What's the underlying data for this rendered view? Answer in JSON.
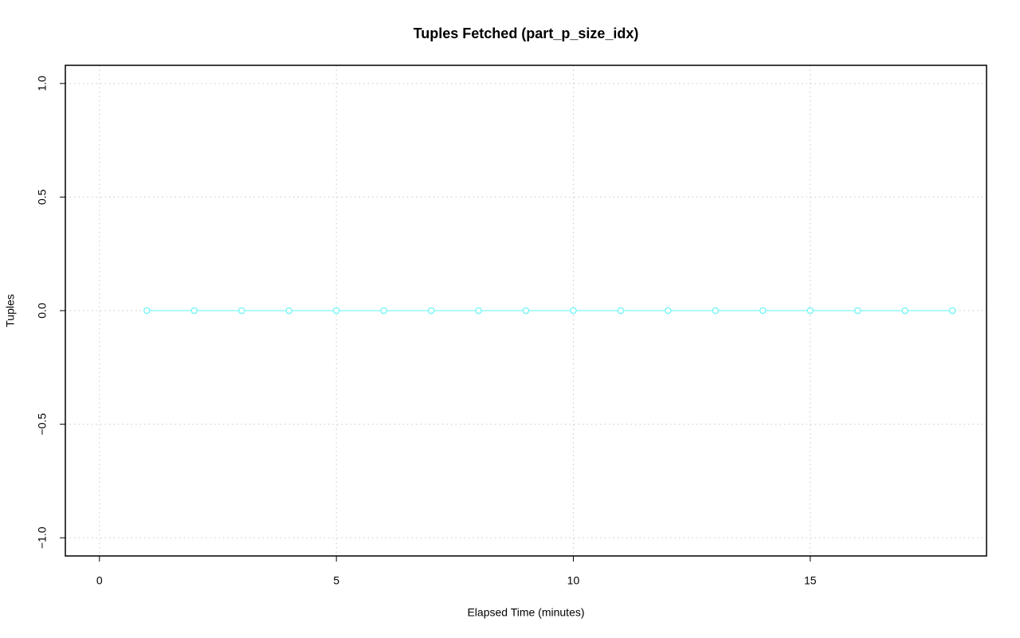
{
  "chart_data": {
    "type": "line",
    "title": "Tuples Fetched (part_p_size_idx)",
    "x_label": "Elapsed Time (minutes)",
    "y_label": "Tuples",
    "x": [
      1,
      2,
      3,
      4,
      5,
      6,
      7,
      8,
      9,
      10,
      11,
      12,
      13,
      14,
      15,
      16,
      17,
      18
    ],
    "series": [
      {
        "color": "#7ff7f7",
        "values": [
          0,
          0,
          0,
          0,
          0,
          0,
          0,
          0,
          0,
          0,
          0,
          0,
          0,
          0,
          0,
          0,
          0,
          0
        ]
      }
    ],
    "xlim": [
      -0.72,
      18.72
    ],
    "ylim": [
      -1.08,
      1.08
    ],
    "xticks": [
      0,
      5,
      10,
      15
    ],
    "yticks": [
      {
        "value": -1,
        "label": "−1.0"
      },
      {
        "value": -0.5,
        "label": "−0.5"
      },
      {
        "value": 0,
        "label": "0.0"
      },
      {
        "value": 0.5,
        "label": "0.5"
      },
      {
        "value": 1,
        "label": "1.0"
      }
    ],
    "grid": true
  }
}
